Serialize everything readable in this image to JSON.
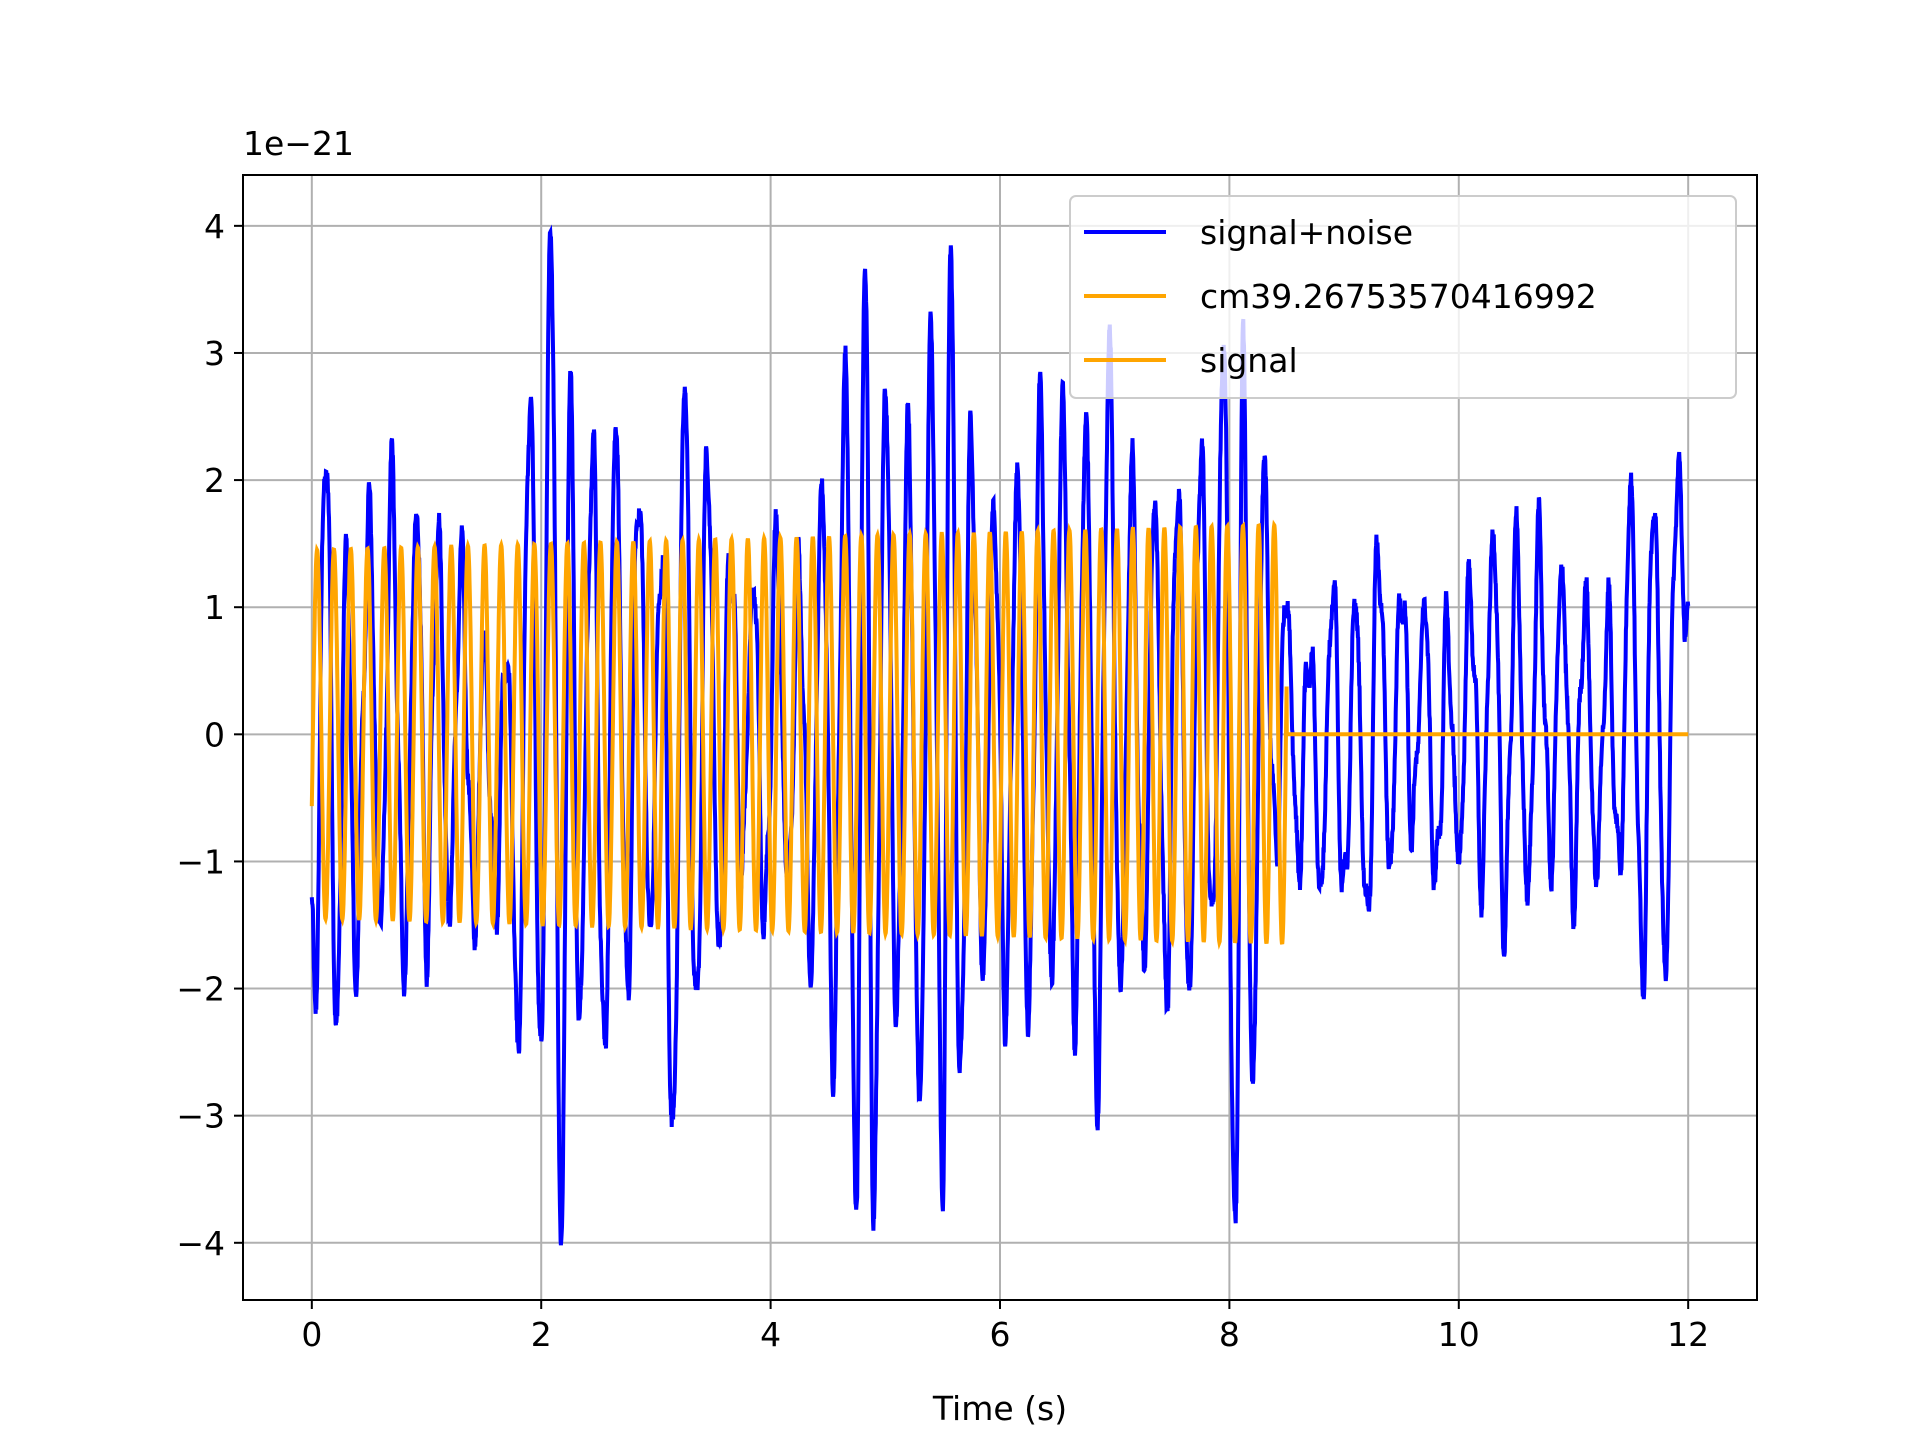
{
  "chart_data": {
    "type": "line",
    "title": "",
    "xlabel": "Time (s)",
    "ylabel": "",
    "y_offset_label": "1e−21",
    "xlim": [
      -0.6,
      12.6
    ],
    "ylim": [
      -4.45,
      4.4
    ],
    "xticks": [
      0,
      2,
      4,
      6,
      8,
      10,
      12
    ],
    "yticks": [
      -4,
      -3,
      -2,
      -1,
      0,
      1,
      2,
      3,
      4
    ],
    "ytick_labels": [
      "−4",
      "−3",
      "−2",
      "−1",
      "0",
      "1",
      "2",
      "3",
      "4"
    ],
    "grid": true,
    "legend_position": "top-right",
    "series": [
      {
        "name": "signal+noise",
        "color": "#0000ff",
        "description_points": {
          "x": [
            0.0,
            0.03,
            0.12,
            0.22,
            0.3,
            0.38,
            0.5,
            0.6,
            0.7,
            0.8,
            0.92,
            1.0,
            1.1,
            1.2,
            1.3,
            1.42,
            1.5,
            1.6,
            1.7,
            1.8,
            1.9,
            2.0,
            2.08,
            2.18,
            2.25,
            2.33,
            2.45,
            2.55,
            2.65,
            2.75,
            2.85,
            2.95,
            3.05,
            3.15,
            3.25,
            3.35,
            3.45,
            3.55,
            3.65,
            3.75,
            3.85,
            3.95,
            4.05,
            4.15,
            4.25,
            4.35,
            4.45,
            4.55,
            4.65,
            4.75,
            4.82,
            4.9,
            5.0,
            5.1,
            5.2,
            5.3,
            5.4,
            5.5,
            5.57,
            5.65,
            5.75,
            5.85,
            5.95,
            6.05,
            6.15,
            6.25,
            6.35,
            6.45,
            6.55,
            6.65,
            6.75,
            6.85,
            6.95,
            7.05,
            7.15,
            7.25,
            7.35,
            7.45,
            7.55,
            7.65,
            7.75,
            7.85,
            7.95,
            8.05,
            8.12,
            8.2,
            8.3,
            8.4,
            8.5,
            8.6,
            8.7,
            8.8,
            8.9,
            9.0,
            9.1,
            9.2,
            9.3,
            9.4,
            9.5,
            9.6,
            9.7,
            9.8,
            9.9,
            10.0,
            10.1,
            10.2,
            10.3,
            10.4,
            10.5,
            10.6,
            10.7,
            10.8,
            10.9,
            11.0,
            11.1,
            11.2,
            11.3,
            11.4,
            11.5,
            11.6,
            11.7,
            11.8,
            11.9,
            12.0
          ],
          "y": [
            -1.3,
            -2.1,
            2.35,
            -2.3,
            1.55,
            -1.8,
            1.7,
            -1.5,
            2.0,
            -1.8,
            1.8,
            -1.6,
            1.6,
            -1.4,
            1.3,
            -1.5,
            0.7,
            -1.3,
            0.7,
            -2.4,
            2.7,
            -2.6,
            4.0,
            -4.0,
            2.85,
            -2.2,
            2.2,
            -2.6,
            2.4,
            -2.0,
            2.0,
            -1.5,
            1.5,
            -3.2,
            2.7,
            -2.3,
            2.2,
            -1.7,
            1.5,
            -1.0,
            1.2,
            -1.5,
            1.5,
            -1.2,
            1.3,
            -1.8,
            2.0,
            -2.5,
            2.85,
            -3.7,
            3.85,
            -3.65,
            2.7,
            -2.2,
            2.3,
            -2.9,
            3.05,
            -3.45,
            3.85,
            -2.8,
            2.3,
            -1.8,
            1.8,
            -2.1,
            2.0,
            -2.2,
            2.5,
            -1.9,
            2.5,
            -2.2,
            2.5,
            -2.8,
            3.0,
            -2.0,
            2.0,
            -1.8,
            1.8,
            -2.0,
            2.0,
            -2.0,
            2.2,
            -1.6,
            3.0,
            -4.05,
            2.9,
            -2.8,
            2.0,
            -0.9,
            1.1,
            -1.0,
            0.7,
            -1.2,
            1.15,
            -1.3,
            1.0,
            -1.5,
            1.5,
            -1.0,
            1.2,
            -0.7,
            1.0,
            -1.2,
            0.8,
            -1.0,
            1.2,
            -1.1,
            1.6,
            -1.5,
            1.5,
            -1.3,
            1.5,
            -1.0,
            1.3,
            -1.2,
            1.1,
            -1.1,
            0.9,
            -1.1,
            1.9,
            -1.9,
            1.9,
            -1.8,
            2.0,
            0.8
          ]
        }
      },
      {
        "name": "cm39.26753570416992",
        "color": "#ffa500"
      },
      {
        "name": "signal",
        "color": "#ffa500",
        "description_points": {
          "x_start": 0.0,
          "x_end_chirp": 8.5,
          "x_end": 12.0,
          "amplitude_start": 1.45,
          "amplitude_end": 1.65,
          "cycles_per_second": 6.8
        }
      }
    ]
  }
}
